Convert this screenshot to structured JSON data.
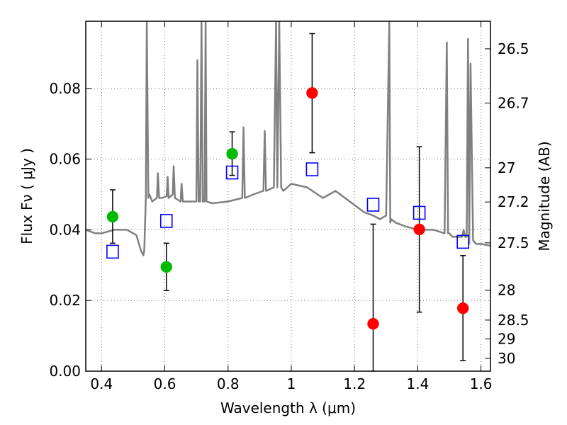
{
  "chart_data": {
    "type": "scatter",
    "xlabel": "Wavelength  λ (μm)",
    "ylabel": "Flux  Fν  ( μJy )",
    "y2label": "Magnitude (AB)",
    "xlim": [
      0.35,
      1.63
    ],
    "ylim": [
      0.0,
      0.099
    ],
    "grid": true,
    "x_ticks": [
      0.4,
      0.6,
      0.8,
      1.0,
      1.2,
      1.4,
      1.6
    ],
    "x_tick_labels": [
      "0.4",
      "0.6",
      "0.8",
      "1",
      "1.2",
      "1.4",
      "1.6"
    ],
    "y_ticks": [
      0.0,
      0.02,
      0.04,
      0.06,
      0.08
    ],
    "y_tick_labels": [
      "0.00",
      "0.02",
      "0.04",
      "0.06",
      "0.08"
    ],
    "mag_ticks": [
      26.5,
      26.7,
      27,
      27.2,
      27.5,
      28,
      28.5,
      29,
      30
    ],
    "mag_tick_labels": [
      "26.5",
      "26.7",
      "27",
      "27.2",
      "27.5",
      "28",
      "28.5",
      "29",
      "30"
    ],
    "colors": {
      "model": "#808080",
      "green": "#00bb00",
      "red": "#ff0000",
      "blue": "#0000ff",
      "grid": "#7a7a7a"
    },
    "model_spectrum": {
      "x": [
        0.35,
        0.38,
        0.4,
        0.44,
        0.48,
        0.51,
        0.525,
        0.532,
        0.535,
        0.54,
        0.543,
        0.548,
        0.551,
        0.556,
        0.56,
        0.575,
        0.578,
        0.582,
        0.59,
        0.606,
        0.609,
        0.612,
        0.625,
        0.628,
        0.632,
        0.65,
        0.653,
        0.657,
        0.68,
        0.7,
        0.703,
        0.707,
        0.712,
        0.716,
        0.72,
        0.726,
        0.729,
        0.732,
        0.75,
        0.8,
        0.845,
        0.849,
        0.853,
        0.88,
        0.912,
        0.916,
        0.92,
        0.945,
        0.952,
        0.956,
        0.962,
        0.968,
        0.975,
        1.0,
        1.05,
        1.1,
        1.14,
        1.2,
        1.23,
        1.26,
        1.28,
        1.3,
        1.31,
        1.313,
        1.316,
        1.33,
        1.36,
        1.4,
        1.45,
        1.485,
        1.492,
        1.496,
        1.5,
        1.51,
        1.54,
        1.545,
        1.55,
        1.555,
        1.559,
        1.563,
        1.567,
        1.575,
        1.585,
        1.6,
        1.63
      ],
      "y": [
        0.04,
        0.039,
        0.039,
        0.04,
        0.04,
        0.0385,
        0.034,
        0.0328,
        0.034,
        0.049,
        0.099,
        0.049,
        0.05,
        0.049,
        0.048,
        0.049,
        0.056,
        0.049,
        0.049,
        0.0495,
        0.055,
        0.049,
        0.05,
        0.058,
        0.049,
        0.048,
        0.053,
        0.048,
        0.048,
        0.048,
        0.088,
        0.048,
        0.048,
        0.099,
        0.048,
        0.048,
        0.099,
        0.048,
        0.0475,
        0.048,
        0.049,
        0.069,
        0.049,
        0.05,
        0.051,
        0.068,
        0.051,
        0.052,
        0.099,
        0.052,
        0.099,
        0.052,
        0.051,
        0.053,
        0.052,
        0.049,
        0.051,
        0.047,
        0.045,
        0.044,
        0.043,
        0.044,
        0.099,
        0.042,
        0.043,
        0.042,
        0.041,
        0.04,
        0.04,
        0.039,
        0.093,
        0.039,
        0.039,
        0.038,
        0.038,
        0.04,
        0.038,
        0.038,
        0.094,
        0.036,
        0.087,
        0.037,
        0.036,
        0.036,
        0.0355
      ]
    },
    "series": [
      {
        "marker": "circle",
        "color_key": "green",
        "x": [
          0.435,
          0.605,
          0.813
        ],
        "y": [
          0.0437,
          0.0295,
          0.0615
        ],
        "err_low": [
          0.0075,
          0.0067,
          0.0061
        ],
        "err_high": [
          0.0076,
          0.0067,
          0.0062
        ]
      },
      {
        "marker": "circle",
        "color_key": "red",
        "x": [
          1.066,
          1.259,
          1.405,
          1.543
        ],
        "y": [
          0.0787,
          0.0134,
          0.0401,
          0.0178
        ],
        "err_low": [
          0.0169,
          0.0134,
          0.0234,
          0.0148
        ],
        "err_high": [
          0.0168,
          0.0282,
          0.0234,
          0.0149
        ]
      },
      {
        "marker": "square-open",
        "color_key": "blue",
        "x": [
          0.435,
          0.605,
          0.813,
          1.066,
          1.259,
          1.405,
          1.543
        ],
        "y": [
          0.0338,
          0.0425,
          0.0562,
          0.0571,
          0.0471,
          0.0448,
          0.0366
        ]
      }
    ]
  }
}
